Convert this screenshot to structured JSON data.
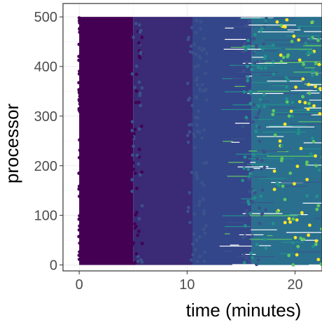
{
  "chart_data": {
    "type": "scatter",
    "title": "",
    "xlabel": "time (minutes)",
    "ylabel": "processor",
    "xlim": [
      -1.5,
      22.5
    ],
    "ylim": [
      -12,
      527
    ],
    "x_ticks": [
      0,
      10,
      20
    ],
    "y_ticks": [
      0,
      100,
      200,
      300,
      400,
      500
    ],
    "x_tick_labels": [
      "0",
      "10",
      "20"
    ],
    "y_tick_labels": [
      "0",
      "100",
      "200",
      "300",
      "400",
      "500"
    ],
    "grid": true,
    "legend": "none",
    "color_scale": "viridis",
    "processors": {
      "min": 0,
      "max": 500
    },
    "time_bands": [
      {
        "start": 0,
        "end": 5,
        "color": "#440154"
      },
      {
        "start": 5,
        "end": 10.5,
        "color": "#3b2a76"
      },
      {
        "start": 10.5,
        "end": 16,
        "color": "#34468a"
      },
      {
        "start": 16,
        "end": 22.5,
        "color": "#2a6f8e"
      }
    ],
    "point_color_stops": [
      "#440154",
      "#3b528b",
      "#21908c",
      "#5dc863",
      "#fde725"
    ]
  }
}
